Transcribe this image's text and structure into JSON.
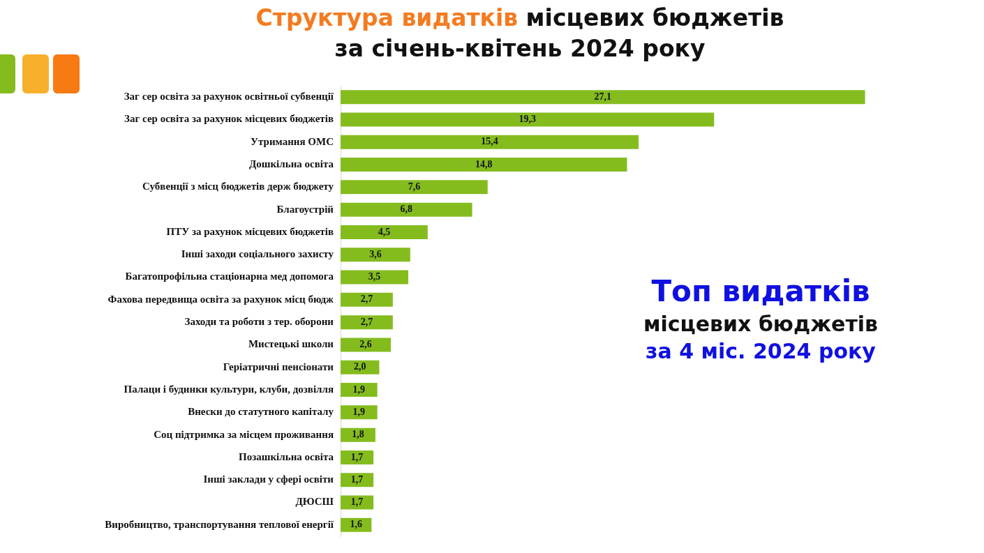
{
  "chart_data": {
    "type": "bar",
    "orientation": "horizontal",
    "title": "Структура видатків місцевих бюджетів за січень-квітень 2024 року",
    "categories": [
      "Заг сер освіта за рахунок освітньої субвенції",
      "Заг сер освіта за рахунок місцевих бюджетів",
      "Утримання ОМС",
      "Дошкільна освіта",
      "Субвенції з місц бюджетів держ бюджету",
      "Благоустрій",
      "ПТУ за рахунок місцевих бюджетів",
      "Інші заходи соціального захисту",
      "Багатопрофільна стаціонарна мед допомога",
      "Фахова передвища освіта за рахунок місц бюдж",
      "Заходи та роботи з тер. оборони",
      "Мистецькі школи",
      "Геріатричні пенсіонати",
      "Палаци і будинки культури, клуби, дозвілля",
      "Внески до статутного капіталу",
      "Соц підтримка за місцем проживання",
      "Позашкільна освіта",
      "Інші заклади у сфері освіти",
      "ДЮСШ",
      "Виробництво, транспортування теплової енергії"
    ],
    "values": [
      27.1,
      19.3,
      15.4,
      14.8,
      7.6,
      6.8,
      4.5,
      3.6,
      3.5,
      2.7,
      2.7,
      2.6,
      2.0,
      1.9,
      1.9,
      1.8,
      1.7,
      1.7,
      1.7,
      1.6
    ],
    "value_labels": [
      "27,1",
      "19,3",
      "15,4",
      "14,8",
      "7,6",
      "6,8",
      "4,5",
      "3,6",
      "3,5",
      "2,7",
      "2,7",
      "2,6",
      "2,0",
      "1,9",
      "1,9",
      "1,8",
      "1,7",
      "1,7",
      "1,7",
      "1,6"
    ],
    "color": "#84bc1e",
    "annotations": [
      "Топ видатків",
      "місцевих бюджетів",
      "за 4 міс. 2024 року"
    ]
  }
}
